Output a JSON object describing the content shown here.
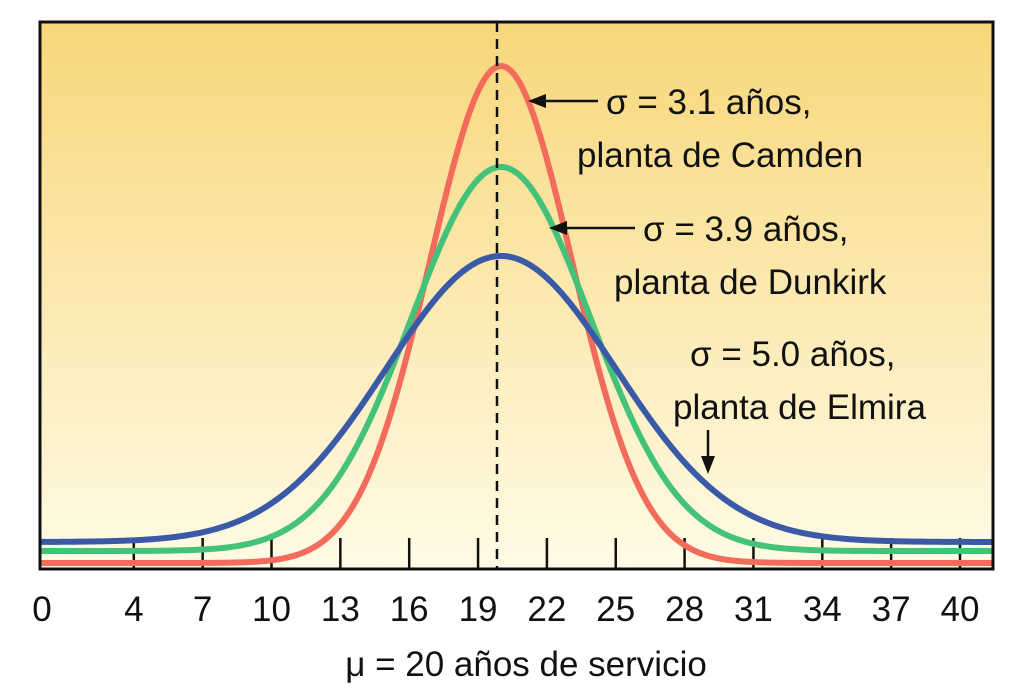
{
  "chart_data": {
    "type": "line",
    "xlabel": "μ = 20 años de servicio",
    "xlim": [
      0,
      41
    ],
    "x_ticks": [
      0,
      4,
      7,
      10,
      13,
      16,
      19,
      22,
      25,
      28,
      31,
      34,
      37,
      40
    ],
    "mean": 20,
    "series": [
      {
        "name": "σ = 3.1 años, planta de Camden",
        "sigma": 3.1,
        "mean": 20,
        "color": "#f26b5b"
      },
      {
        "name": "σ = 3.9 años, planta de Dunkirk",
        "sigma": 3.9,
        "mean": 20,
        "color": "#44c27a"
      },
      {
        "name": "σ = 5.0 años, planta de Elmira",
        "sigma": 5.0,
        "mean": 20,
        "color": "#3a5aa8"
      }
    ],
    "annotations": [
      {
        "line1": "σ = 3.1 años,",
        "line2": "planta de Camden"
      },
      {
        "line1": "σ = 3.9 años,",
        "line2": "planta de Dunkirk"
      },
      {
        "line1": "σ = 5.0 años,",
        "line2": "planta de Elmira"
      }
    ],
    "background_gradient": [
      "#f8d77a",
      "#fffbe6"
    ],
    "mean_line": "dashed"
  }
}
